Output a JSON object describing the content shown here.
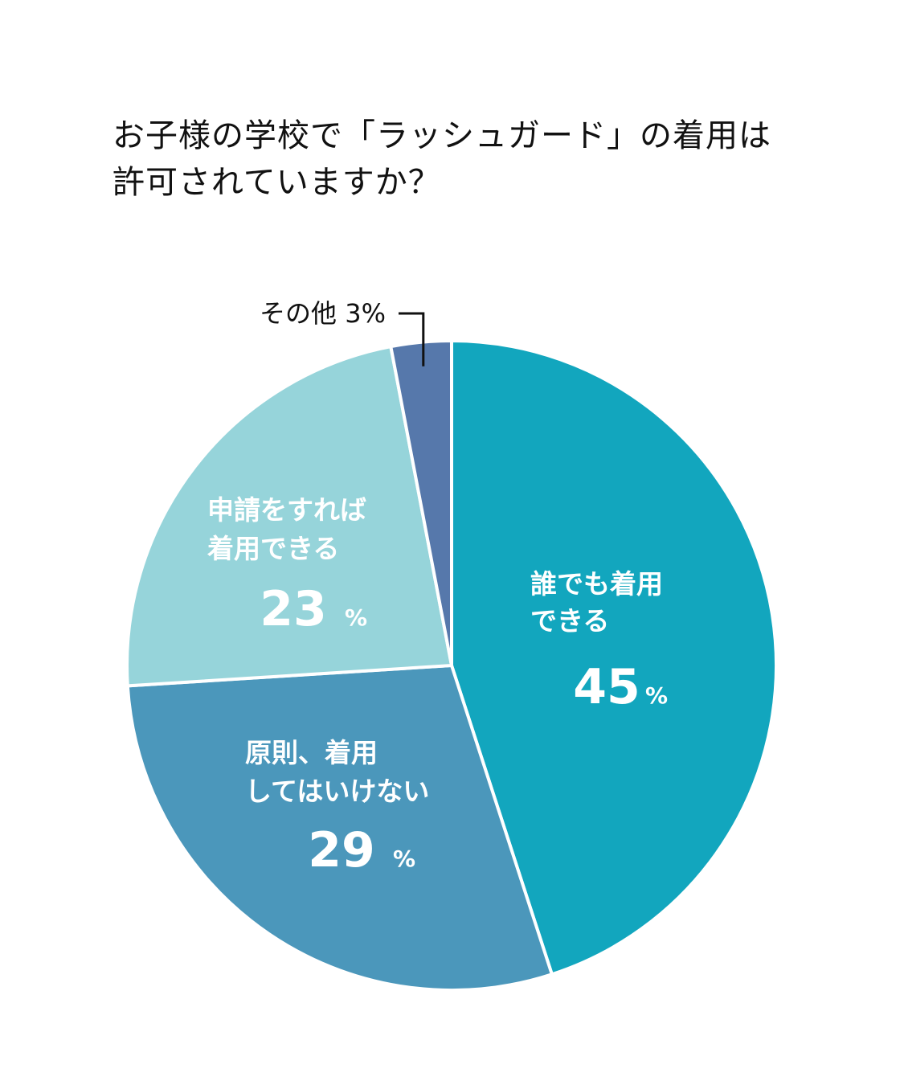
{
  "title": {
    "line1": "お子様の学校で「ラッシュガード」の着用は",
    "line2": "許可されていますか？"
  },
  "chart_data": {
    "type": "pie",
    "title": "お子様の学校で「ラッシュガード」の着用は許可されていますか？",
    "unit": "%",
    "slices": [
      {
        "name": "誰でも着用できる",
        "label_lines": [
          "誰でも着用",
          "できる"
        ],
        "value": 45,
        "color": "#12a6be"
      },
      {
        "name": "原則、着用してはいけない",
        "label_lines": [
          "原則、着用",
          "してはいけない"
        ],
        "value": 29,
        "color": "#4b97bb"
      },
      {
        "name": "申請をすれば着用できる",
        "label_lines": [
          "申請をすれば",
          "着用できる"
        ],
        "value": 23,
        "color": "#96d4da"
      },
      {
        "name": "その他",
        "label_lines": [
          "その他"
        ],
        "value": 3,
        "color": "#5678ab",
        "outside_label": "その他 3%"
      }
    ]
  }
}
